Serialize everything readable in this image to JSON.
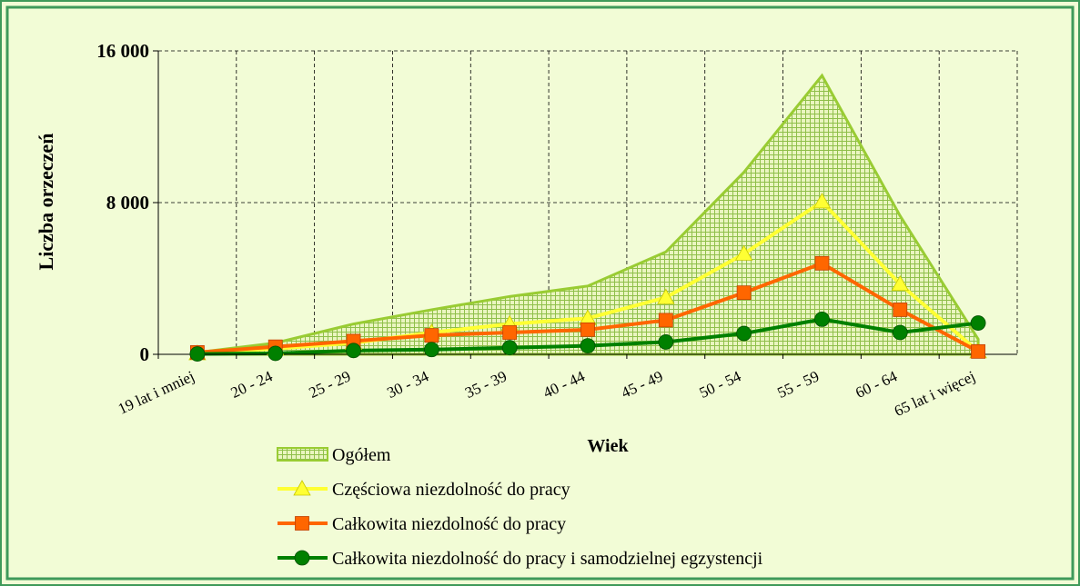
{
  "chart_data": {
    "type": "line",
    "x_label": "Wiek",
    "y_label": "Liczba orzeczeń",
    "categories": [
      "19 lat i mniej",
      "20 - 24",
      "25 - 29",
      "30 - 34",
      "35 - 39",
      "40 - 44",
      "45 - 49",
      "50 - 54",
      "55 - 59",
      "60 - 64",
      "65 lat i więcej"
    ],
    "ylim": [
      0,
      16000
    ],
    "yticks": [
      0,
      {
        "value": 8000,
        "label": "8 000"
      },
      {
        "value": 16000,
        "label": "16 000"
      }
    ],
    "grid": true,
    "series": [
      {
        "name": "Ogółem",
        "color": "#99cc33",
        "style": "area",
        "values": [
          100,
          600,
          1600,
          2350,
          3050,
          3600,
          5400,
          9600,
          14700,
          7300,
          800
        ]
      },
      {
        "name": "Częściowa niezdolność do pracy",
        "color": "#ffff33",
        "marker": "triangle",
        "values": [
          50,
          300,
          600,
          1150,
          1600,
          1900,
          3000,
          5300,
          8050,
          3700,
          150
        ]
      },
      {
        "name": "Całkowita niezdolność do pracy",
        "color": "#ff6600",
        "marker": "square",
        "values": [
          100,
          400,
          700,
          1000,
          1150,
          1300,
          1800,
          3250,
          4800,
          2350,
          150
        ]
      },
      {
        "name": "Całkowita niezdolność do pracy i samodzielnej egzystencji",
        "color": "#008000",
        "marker": "circle",
        "values": [
          20,
          50,
          200,
          250,
          350,
          450,
          650,
          1100,
          1850,
          1150,
          1650
        ]
      }
    ]
  }
}
